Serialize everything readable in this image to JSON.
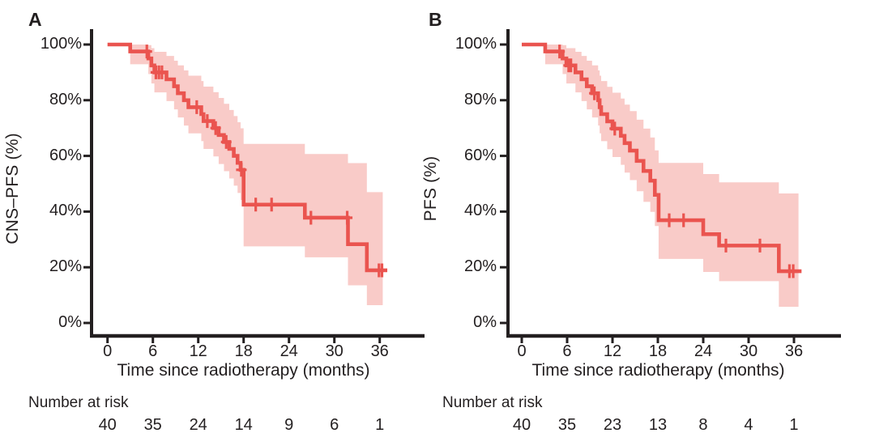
{
  "figure": {
    "background": "#ffffff"
  },
  "colors": {
    "curve": "#ea544f",
    "band": "#f9cbc8",
    "axis": "#231f20",
    "text": "#231f20"
  },
  "chart_data": [
    {
      "panel_label": "A",
      "type": "line",
      "subtype": "kaplan-meier-step-with-ci-band",
      "ylabel": "CNS–PFS (%)",
      "xlabel": "Time since radiotherapy (months)",
      "xlim": [
        0,
        39
      ],
      "ylim": [
        0,
        100
      ],
      "grid": false,
      "legend": "none",
      "xticks": [
        0,
        6,
        12,
        18,
        24,
        30,
        36
      ],
      "yticks": [
        {
          "label": "0%",
          "value": 0
        },
        {
          "label": "20%",
          "value": 20
        },
        {
          "label": "40%",
          "value": 40
        },
        {
          "label": "60%",
          "value": 60
        },
        {
          "label": "80%",
          "value": 80
        },
        {
          "label": "100%",
          "value": 100
        }
      ],
      "curve_end_t": 37.0,
      "band_end_t": 36.4,
      "steps": [
        {
          "t": 0.0,
          "s": 100.0
        },
        {
          "t": 3.0,
          "s": 97.5,
          "lo": 92.9,
          "hi": 100.0
        },
        {
          "t": 5.4,
          "s": 95.0,
          "lo": 89.4,
          "hi": 99.8
        },
        {
          "t": 5.8,
          "s": 92.5,
          "lo": 86.0,
          "hi": 98.7
        },
        {
          "t": 6.2,
          "s": 90.0,
          "lo": 82.8,
          "hi": 97.4
        },
        {
          "t": 7.8,
          "s": 87.5,
          "lo": 79.7,
          "hi": 95.9
        },
        {
          "t": 8.8,
          "s": 85.0,
          "lo": 76.7,
          "hi": 94.2
        },
        {
          "t": 9.3,
          "s": 82.5,
          "lo": 73.8,
          "hi": 92.5
        },
        {
          "t": 10.1,
          "s": 80.0,
          "lo": 70.9,
          "hi": 90.7
        },
        {
          "t": 10.7,
          "s": 77.5,
          "lo": 68.1,
          "hi": 88.8
        },
        {
          "t": 12.4,
          "s": 75.0,
          "lo": 65.3,
          "hi": 86.9
        },
        {
          "t": 12.7,
          "s": 72.5,
          "lo": 62.5,
          "hi": 84.9
        },
        {
          "t": 14.0,
          "s": 70.0,
          "lo": 59.8,
          "hi": 82.9
        },
        {
          "t": 14.7,
          "s": 67.5,
          "lo": 57.1,
          "hi": 80.8
        },
        {
          "t": 15.4,
          "s": 65.0,
          "lo": 54.5,
          "hi": 78.7
        },
        {
          "t": 16.1,
          "s": 62.5,
          "lo": 51.9,
          "hi": 76.5
        },
        {
          "t": 16.7,
          "s": 60.0,
          "lo": 49.3,
          "hi": 74.3
        },
        {
          "t": 17.2,
          "s": 57.5,
          "lo": 46.7,
          "hi": 72.1
        },
        {
          "t": 17.6,
          "s": 55.0,
          "lo": 44.2,
          "hi": 69.9
        },
        {
          "t": 18.0,
          "s": 42.5,
          "lo": 27.5,
          "hi": 64.3
        },
        {
          "t": 26.1,
          "s": 37.8,
          "lo": 23.6,
          "hi": 60.7
        },
        {
          "t": 31.8,
          "s": 28.3,
          "lo": 13.5,
          "hi": 57.4
        },
        {
          "t": 34.3,
          "s": 18.9,
          "lo": 6.4,
          "hi": 47.0
        }
      ],
      "censor_marks": [
        {
          "t": 5.2,
          "s": 97.5
        },
        {
          "t": 6.4,
          "s": 90.0
        },
        {
          "t": 6.8,
          "s": 90.0
        },
        {
          "t": 7.2,
          "s": 90.0
        },
        {
          "t": 11.8,
          "s": 77.5
        },
        {
          "t": 13.2,
          "s": 72.5
        },
        {
          "t": 14.3,
          "s": 70.0
        },
        {
          "t": 15.7,
          "s": 65.0
        },
        {
          "t": 17.7,
          "s": 55.0
        },
        {
          "t": 19.6,
          "s": 42.5
        },
        {
          "t": 21.7,
          "s": 42.5
        },
        {
          "t": 26.9,
          "s": 37.8
        },
        {
          "t": 31.7,
          "s": 37.8
        },
        {
          "t": 35.9,
          "s": 18.9
        },
        {
          "t": 36.3,
          "s": 18.9
        }
      ],
      "number_at_risk": {
        "label": "Number at risk",
        "times": [
          0,
          6,
          12,
          18,
          24,
          30,
          36
        ],
        "counts": [
          40,
          35,
          24,
          14,
          9,
          6,
          1
        ]
      }
    },
    {
      "panel_label": "B",
      "type": "line",
      "subtype": "kaplan-meier-step-with-ci-band",
      "ylabel": "PFS (%)",
      "xlabel": "Time since radiotherapy (months)",
      "xlim": [
        0,
        39
      ],
      "ylim": [
        0,
        100
      ],
      "grid": false,
      "legend": "none",
      "xticks": [
        0,
        6,
        12,
        18,
        24,
        30,
        36
      ],
      "yticks": [
        {
          "label": "0%",
          "value": 0
        },
        {
          "label": "20%",
          "value": 20
        },
        {
          "label": "40%",
          "value": 40
        },
        {
          "label": "60%",
          "value": 60
        },
        {
          "label": "80%",
          "value": 80
        },
        {
          "label": "100%",
          "value": 100
        }
      ],
      "curve_end_t": 37.0,
      "band_end_t": 36.6,
      "steps": [
        {
          "t": 0.0,
          "s": 100.0
        },
        {
          "t": 3.1,
          "s": 97.5,
          "lo": 92.9,
          "hi": 100.0
        },
        {
          "t": 5.4,
          "s": 95.0,
          "lo": 89.4,
          "hi": 99.8
        },
        {
          "t": 5.9,
          "s": 92.5,
          "lo": 86.0,
          "hi": 98.7
        },
        {
          "t": 7.1,
          "s": 90.0,
          "lo": 82.8,
          "hi": 97.4
        },
        {
          "t": 7.9,
          "s": 87.5,
          "lo": 79.7,
          "hi": 95.9
        },
        {
          "t": 8.6,
          "s": 85.0,
          "lo": 76.7,
          "hi": 94.2
        },
        {
          "t": 9.3,
          "s": 82.5,
          "lo": 73.8,
          "hi": 92.5
        },
        {
          "t": 10.1,
          "s": 80.0,
          "lo": 70.9,
          "hi": 90.7
        },
        {
          "t": 10.3,
          "s": 77.5,
          "lo": 68.1,
          "hi": 88.8
        },
        {
          "t": 10.5,
          "s": 75.0,
          "lo": 65.3,
          "hi": 86.9
        },
        {
          "t": 11.3,
          "s": 72.4,
          "lo": 62.4,
          "hi": 84.8
        },
        {
          "t": 12.0,
          "s": 69.8,
          "lo": 59.6,
          "hi": 82.7
        },
        {
          "t": 13.1,
          "s": 67.2,
          "lo": 56.8,
          "hi": 80.6
        },
        {
          "t": 13.6,
          "s": 64.6,
          "lo": 54.0,
          "hi": 78.4
        },
        {
          "t": 14.3,
          "s": 61.9,
          "lo": 51.3,
          "hi": 76.1
        },
        {
          "t": 15.2,
          "s": 58.2,
          "lo": 47.3,
          "hi": 73.0
        },
        {
          "t": 16.1,
          "s": 54.6,
          "lo": 43.5,
          "hi": 69.8
        },
        {
          "t": 17.0,
          "s": 51.1,
          "lo": 39.9,
          "hi": 66.6
        },
        {
          "t": 17.6,
          "s": 46.0,
          "lo": 34.8,
          "hi": 62.0
        },
        {
          "t": 18.1,
          "s": 36.9,
          "lo": 23.0,
          "hi": 57.5
        },
        {
          "t": 24.0,
          "s": 31.9,
          "lo": 18.3,
          "hi": 53.5
        },
        {
          "t": 26.1,
          "s": 27.8,
          "lo": 15.0,
          "hi": 50.5
        },
        {
          "t": 34.0,
          "s": 18.6,
          "lo": 5.8,
          "hi": 46.5
        }
      ],
      "censor_marks": [
        {
          "t": 5.0,
          "s": 97.5
        },
        {
          "t": 6.2,
          "s": 92.5
        },
        {
          "t": 6.5,
          "s": 92.5
        },
        {
          "t": 9.6,
          "s": 82.5
        },
        {
          "t": 12.3,
          "s": 69.8
        },
        {
          "t": 19.5,
          "s": 36.9
        },
        {
          "t": 21.4,
          "s": 36.9
        },
        {
          "t": 27.0,
          "s": 27.8
        },
        {
          "t": 31.5,
          "s": 27.8
        },
        {
          "t": 35.4,
          "s": 18.6
        },
        {
          "t": 35.9,
          "s": 18.6
        }
      ],
      "number_at_risk": {
        "label": "Number at risk",
        "times": [
          0,
          6,
          12,
          18,
          24,
          30,
          36
        ],
        "counts": [
          40,
          35,
          23,
          13,
          8,
          4,
          1
        ]
      }
    }
  ]
}
